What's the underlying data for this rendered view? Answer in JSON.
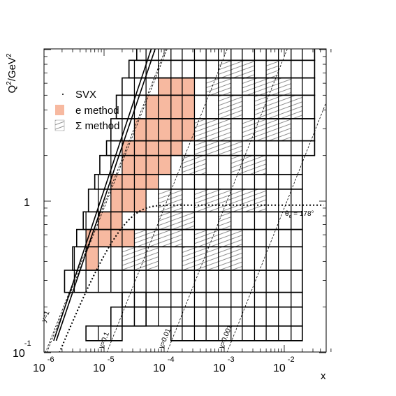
{
  "chart_data": {
    "type": "scatter",
    "title": "",
    "xlabel": "x",
    "ylabel_parts": {
      "base": "Q",
      "sup1": "2",
      "mid": "/GeV",
      "sup2": "2"
    },
    "x_scale": "log",
    "y_scale": "log",
    "xlim": [
      1e-06,
      0.06
    ],
    "ylim": [
      0.1,
      18
    ],
    "x_ticks": [
      {
        "value": 1e-06,
        "base": "10",
        "exp": "-6"
      },
      {
        "value": 1e-05,
        "base": "10",
        "exp": "-5"
      },
      {
        "value": 0.0001,
        "base": "10",
        "exp": "-4"
      },
      {
        "value": 0.001,
        "base": "10",
        "exp": "-3"
      },
      {
        "value": 0.01,
        "base": "10",
        "exp": "-2"
      }
    ],
    "y_ticks": [
      {
        "value": 0.1,
        "base": "10",
        "exp": "-1"
      },
      {
        "value": 1,
        "base": "1",
        "exp": ""
      }
    ],
    "legend": {
      "placement": "top-left",
      "entries": [
        {
          "label": "SVX",
          "style": "dot"
        },
        {
          "label": "e method",
          "style": "fill",
          "color": "#f7b9a0"
        },
        {
          "label": "Σ method",
          "style": "hatch"
        }
      ]
    },
    "y_lines": [
      {
        "label": "y=1",
        "y": 1
      },
      {
        "label": "y=0.1",
        "y": 0.1
      },
      {
        "label": "y=0.01",
        "y": 0.01
      },
      {
        "label": "y=0.001",
        "y": 0.001
      }
    ],
    "theta_label": {
      "base": "θ",
      "sub": "e",
      "text": " = 178°"
    },
    "x_edges": [
      1.3e-06,
      2e-06,
      3.2e-06,
      5e-06,
      8e-06,
      1.3e-05,
      2e-05,
      3.2e-05,
      5e-05,
      8e-05,
      0.00013,
      0.0002,
      0.00032,
      0.0005,
      0.0008,
      0.0013,
      0.002,
      0.0032,
      0.005,
      0.008,
      0.013,
      0.02,
      0.032
    ],
    "q2_edges": [
      0.25,
      0.35,
      0.5,
      0.65,
      0.85,
      1.2,
      1.5,
      2,
      2.5,
      3.5,
      5,
      6.5,
      8.5,
      12
    ],
    "e_method_bins": [
      [
        0.35,
        0.5,
        5e-06,
        8e-06
      ],
      [
        0.5,
        0.65,
        5e-06,
        3.2e-05
      ],
      [
        0.65,
        0.85,
        8e-06,
        2e-05
      ],
      [
        0.85,
        1.2,
        1.3e-05,
        5e-05
      ],
      [
        1.2,
        1.5,
        1.3e-05,
        8e-05
      ],
      [
        1.5,
        2,
        2e-05,
        0.00013
      ],
      [
        2,
        2.5,
        2e-05,
        0.0002
      ],
      [
        2.5,
        3.5,
        3.2e-05,
        0.00032
      ],
      [
        3.5,
        5,
        5e-05,
        0.00032
      ],
      [
        5,
        6.5,
        8e-05,
        0.00032
      ]
    ],
    "sigma_method_bins": [
      [
        0.35,
        0.5,
        2e-05,
        8e-05
      ],
      [
        0.35,
        0.5,
        0.0002,
        0.002
      ],
      [
        0.5,
        0.65,
        3.2e-05,
        0.0002
      ],
      [
        0.5,
        0.65,
        0.00032,
        0.002
      ],
      [
        0.65,
        0.85,
        8e-05,
        0.00032
      ],
      [
        0.65,
        0.85,
        0.0008,
        0.0013
      ],
      [
        0.85,
        1.2,
        8e-05,
        0.0002
      ],
      [
        0.85,
        1.2,
        0.00032,
        0.005
      ],
      [
        1.5,
        2,
        0.0002,
        0.0005
      ],
      [
        1.5,
        2,
        0.0013,
        0.005
      ],
      [
        2,
        2.5,
        0.00032,
        0.002
      ],
      [
        2.5,
        3.5,
        0.00032,
        0.0013
      ],
      [
        2.5,
        3.5,
        0.002,
        0.013
      ],
      [
        3.5,
        5,
        0.0008,
        0.002
      ],
      [
        3.5,
        5,
        0.0032,
        0.02
      ],
      [
        5,
        6.5,
        0.0005,
        0.0013
      ],
      [
        5,
        6.5,
        0.002,
        0.013
      ],
      [
        6.5,
        8.5,
        0.0008,
        0.0032
      ],
      [
        6.5,
        8.5,
        0.005,
        0.008
      ]
    ],
    "svx_bins": [
      [
        0.12,
        0.15,
        5e-06,
        2e-05
      ],
      [
        0.15,
        0.2,
        1.3e-05,
        5e-05
      ],
      [
        0.2,
        0.25,
        2e-05,
        5e-05
      ],
      [
        0.12,
        0.15,
        0.00013,
        0.02
      ],
      [
        0.15,
        0.2,
        2e-05,
        0.02
      ],
      [
        0.2,
        0.25,
        2e-05,
        0.02
      ],
      [
        0.25,
        0.35,
        2.2e-06,
        0.02
      ],
      [
        0.35,
        0.5,
        3e-06,
        0.02
      ],
      [
        0.5,
        0.65,
        3.5e-06,
        0.02
      ],
      [
        0.65,
        0.85,
        4.5e-06,
        0.02
      ],
      [
        0.85,
        1.2,
        5.5e-06,
        0.02
      ],
      [
        1.2,
        1.5,
        7e-06,
        0.02
      ],
      [
        1.5,
        2,
        8.5e-06,
        0.02
      ],
      [
        2,
        2.5,
        1.1e-05,
        0.032
      ],
      [
        2.5,
        3.5,
        1.3e-05,
        0.032
      ],
      [
        3.5,
        5,
        1.6e-05,
        0.032
      ],
      [
        5,
        6.5,
        2e-05,
        0.032
      ],
      [
        6.5,
        8.5,
        2.6e-05,
        0.032
      ],
      [
        8.5,
        12,
        3.5e-05,
        0.032
      ],
      [
        12,
        16,
        4.5e-05,
        0.032
      ]
    ]
  }
}
